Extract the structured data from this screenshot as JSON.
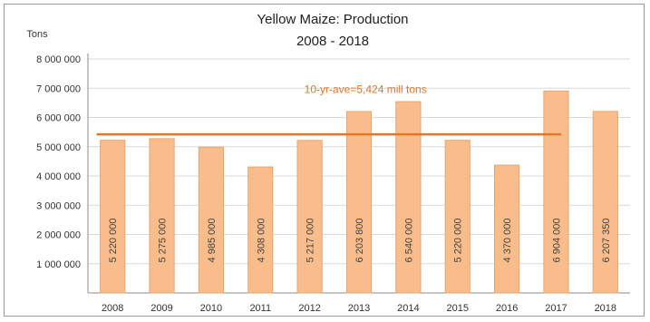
{
  "chart_data": {
    "type": "bar",
    "title": "Yellow Maize: Production",
    "subtitle": "2008 - 2018",
    "ylabel": "Tons",
    "xlabel": "",
    "ylim": [
      0,
      8000000
    ],
    "yticks": [
      1000000,
      2000000,
      3000000,
      4000000,
      5000000,
      6000000,
      7000000,
      8000000
    ],
    "ytick_labels": [
      "1 000 000",
      "2 000 000",
      "3 000 000",
      "4 000 000",
      "5 000 000",
      "6 000 000",
      "7 000 000",
      "8 000 000"
    ],
    "categories": [
      "2008",
      "2009",
      "2010",
      "2011",
      "2012",
      "2013",
      "2014",
      "2015",
      "2016",
      "2017",
      "2018"
    ],
    "values": [
      5220000,
      5275000,
      4985000,
      4308000,
      5217000,
      6203800,
      6540000,
      5220000,
      4370000,
      6904000,
      6207350
    ],
    "value_labels": [
      "5 220 000",
      "5 275 000",
      "4 985 000",
      "4 308 000",
      "5 217 000",
      "6 203 800",
      "6 540 000",
      "5 220 000",
      "4 370 000",
      "6 904 000",
      "6 207 350"
    ],
    "reference_line": {
      "value": 5424000,
      "label": "10-yr-ave=5,424 mill tons",
      "color": "#e0772b",
      "spans_categories": [
        "2008",
        "2017"
      ]
    },
    "bar_color": "#f9bd8c",
    "bar_border_color": "#e9a673",
    "grid": true,
    "legend": "none"
  }
}
